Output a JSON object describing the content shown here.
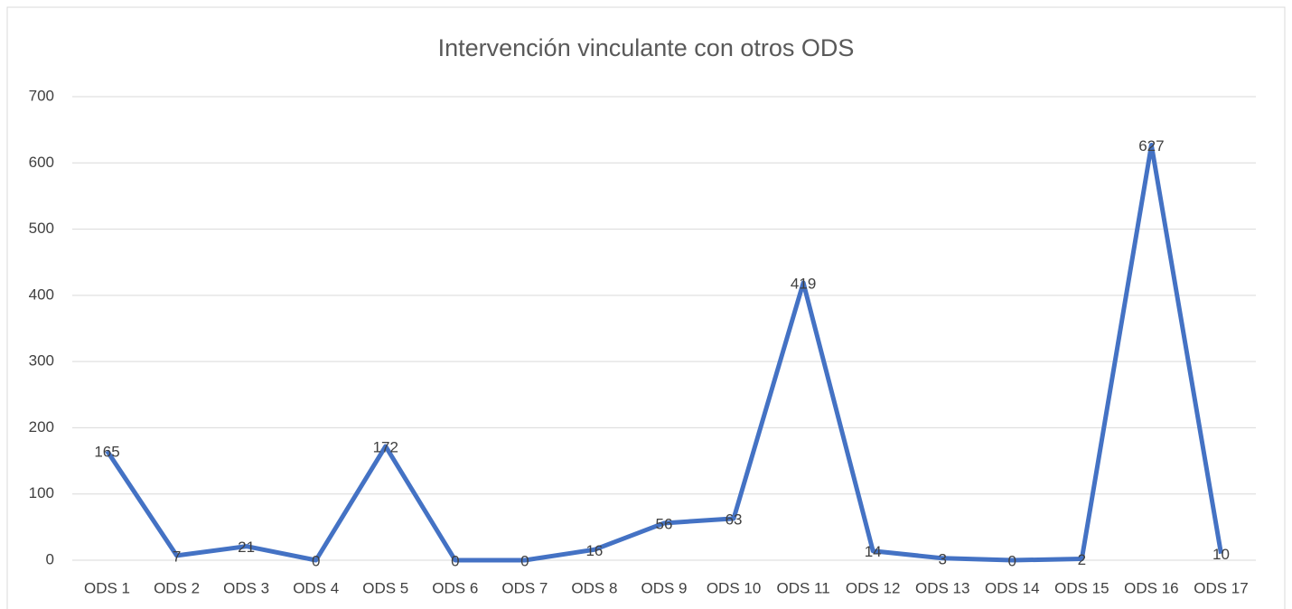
{
  "chart_data": {
    "type": "line",
    "title": "Intervención vinculante con otros ODS",
    "categories": [
      "ODS 1",
      "ODS 2",
      "ODS 3",
      "ODS 4",
      "ODS 5",
      "ODS 6",
      "ODS 7",
      "ODS 8",
      "ODS 9",
      "ODS 10",
      "ODS 11",
      "ODS 12",
      "ODS 13",
      "ODS 14",
      "ODS 15",
      "ODS 16",
      "ODS 17"
    ],
    "values": [
      165,
      7,
      21,
      0,
      172,
      0,
      0,
      16,
      56,
      63,
      419,
      14,
      3,
      0,
      2,
      627,
      10
    ],
    "color": "#4472c4",
    "ylim": [
      0,
      700
    ],
    "yticks": [
      0,
      100,
      200,
      300,
      400,
      500,
      600,
      700
    ],
    "grid": true
  }
}
